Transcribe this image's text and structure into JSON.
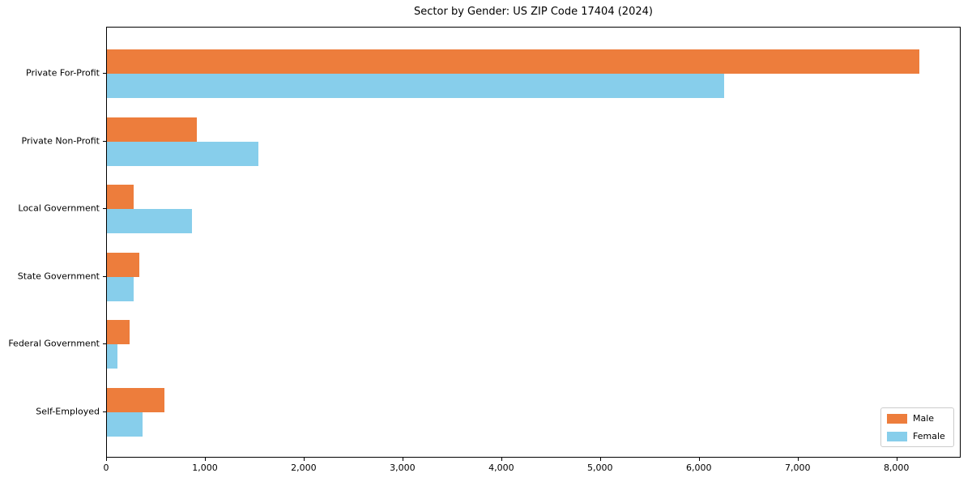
{
  "chart_data": {
    "type": "bar",
    "orientation": "horizontal",
    "title": "Sector by Gender: US ZIP Code 17404 (2024)",
    "xlabel": "",
    "ylabel": "",
    "categories": [
      "Private For-Profit",
      "Private Non-Profit",
      "Local Government",
      "State Government",
      "Federal Government",
      "Self-Employed"
    ],
    "series": [
      {
        "name": "Male",
        "color": "#ED7D3C",
        "values": [
          8220,
          910,
          270,
          330,
          230,
          580
        ]
      },
      {
        "name": "Female",
        "color": "#87CEEB",
        "values": [
          6250,
          1530,
          860,
          270,
          110,
          360
        ]
      }
    ],
    "xlim": [
      0,
      8650
    ],
    "xticks": [
      0,
      1000,
      2000,
      3000,
      4000,
      5000,
      6000,
      7000,
      8000
    ],
    "xtick_labels": [
      "0",
      "1,000",
      "2,000",
      "3,000",
      "4,000",
      "5,000",
      "6,000",
      "7,000",
      "8,000"
    ],
    "grid": false,
    "legend": {
      "position": "lower right",
      "entries": [
        "Male",
        "Female"
      ]
    }
  }
}
